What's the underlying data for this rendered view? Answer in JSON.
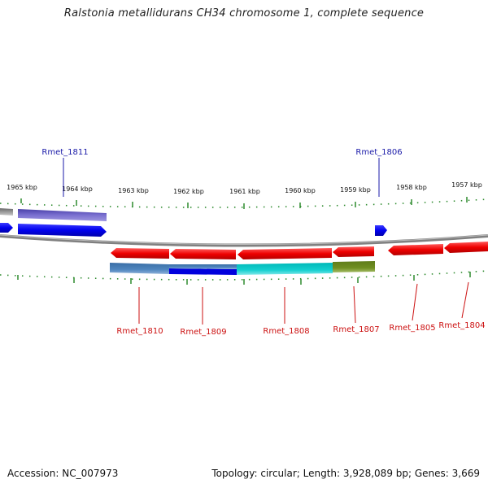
{
  "title": "Ralstonia metallidurans CH34 chromosome 1, complete sequence",
  "footer": {
    "accession": "Accession: NC_007973",
    "summary": "Topology: circular; Length: 3,928,089 bp; Genes: 3,669"
  },
  "colors": {
    "forward_label": "#1a1aa8",
    "reverse_label": "#cc1111",
    "tick": "#2e8b2e",
    "backbone": "#888888"
  },
  "ticks": [
    "1965 kbp",
    "1964 kbp",
    "1963 kbp",
    "1962 kbp",
    "1961 kbp",
    "1960 kbp",
    "1959 kbp",
    "1958 kbp",
    "1957 kbp"
  ],
  "genes_forward": [
    {
      "name": "Rmet_1811",
      "labeled": true
    },
    {
      "name": "Rmet_1806",
      "labeled": true
    }
  ],
  "genes_reverse": [
    {
      "name": "Rmet_1810"
    },
    {
      "name": "Rmet_1809"
    },
    {
      "name": "Rmet_1808"
    },
    {
      "name": "Rmet_1807"
    },
    {
      "name": "Rmet_1805"
    },
    {
      "name": "Rmet_1804"
    }
  ]
}
